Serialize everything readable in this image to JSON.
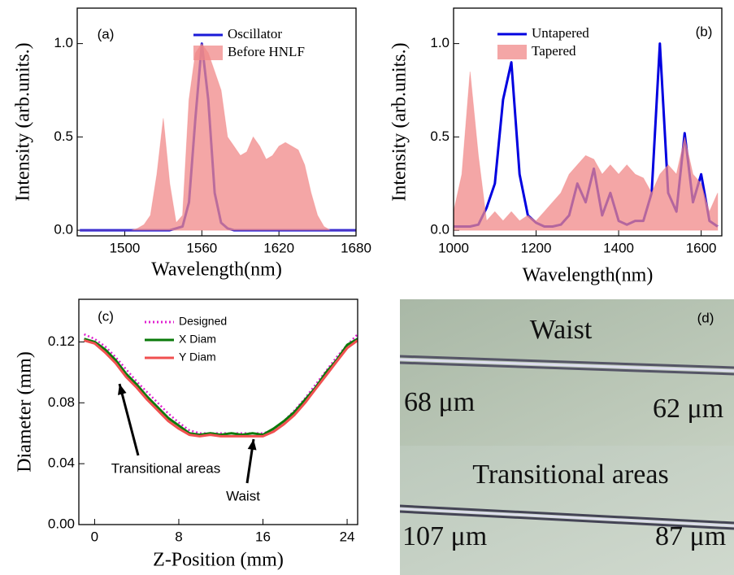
{
  "chart_data": [
    {
      "type": "line",
      "panel_label": "(a)",
      "xlabel": "Wavelength(nm)",
      "ylabel": "Intensity (arb.units.)",
      "xlim": [
        1463,
        1680
      ],
      "ylim": [
        -0.03,
        1.19
      ],
      "xticks": [
        1500,
        1560,
        1620,
        1680
      ],
      "yticks": [
        {
          "value": 0,
          "label": "0.0"
        },
        0.5,
        {
          "value": 1,
          "label": "1.0"
        }
      ],
      "x": [
        1465,
        1470,
        1475,
        1480,
        1485,
        1490,
        1495,
        1500,
        1505,
        1510,
        1515,
        1520,
        1525,
        1530,
        1535,
        1540,
        1545,
        1550,
        1555,
        1560,
        1565,
        1570,
        1575,
        1580,
        1585,
        1590,
        1595,
        1600,
        1605,
        1610,
        1615,
        1620,
        1625,
        1630,
        1635,
        1640,
        1645,
        1650,
        1655,
        1660,
        1665,
        1670,
        1675,
        1680
      ],
      "series": [
        {
          "name": "Oscillator",
          "color": "#1a1ad8",
          "style": "line",
          "values": [
            0,
            0,
            0,
            0,
            0,
            0,
            0,
            0,
            0,
            0,
            0,
            0,
            0,
            0,
            0,
            0.01,
            0.02,
            0.15,
            0.6,
            1.0,
            0.7,
            0.2,
            0.04,
            0.01,
            0,
            0,
            0,
            0,
            0,
            0,
            0,
            0,
            0,
            0,
            0,
            0,
            0,
            0,
            0,
            0,
            0,
            0,
            0,
            0
          ]
        },
        {
          "name": "Before HNLF",
          "color": "#f08888",
          "style": "area",
          "values": [
            0,
            0,
            0,
            0,
            0,
            0,
            0,
            0,
            0,
            0.01,
            0.03,
            0.08,
            0.3,
            0.6,
            0.25,
            0.04,
            0.08,
            0.7,
            0.95,
            1.0,
            0.95,
            0.85,
            0.75,
            0.5,
            0.45,
            0.4,
            0.42,
            0.5,
            0.45,
            0.38,
            0.4,
            0.45,
            0.47,
            0.45,
            0.43,
            0.35,
            0.2,
            0.08,
            0.02,
            0,
            0,
            0,
            0,
            0
          ]
        }
      ]
    },
    {
      "type": "line",
      "panel_label": "(b)",
      "xlabel": "Wavelength(nm)",
      "ylabel": "Intensity (arb.units.)",
      "xlim": [
        1000,
        1650
      ],
      "ylim": [
        -0.03,
        1.19
      ],
      "xticks": [
        1000,
        1200,
        1400,
        1600
      ],
      "yticks": [
        {
          "value": 0,
          "label": "0.0"
        },
        0.5,
        {
          "value": 1,
          "label": "1.0"
        }
      ],
      "x": [
        1000,
        1020,
        1040,
        1060,
        1080,
        1100,
        1120,
        1140,
        1160,
        1180,
        1200,
        1220,
        1240,
        1260,
        1280,
        1300,
        1320,
        1340,
        1360,
        1380,
        1400,
        1420,
        1440,
        1460,
        1480,
        1500,
        1520,
        1540,
        1560,
        1580,
        1600,
        1620,
        1640
      ],
      "series": [
        {
          "name": "Untapered",
          "color": "#0000e0",
          "style": "line",
          "values": [
            0.02,
            0.02,
            0.02,
            0.03,
            0.12,
            0.25,
            0.7,
            0.9,
            0.3,
            0.08,
            0.04,
            0.02,
            0.02,
            0.03,
            0.08,
            0.25,
            0.15,
            0.33,
            0.08,
            0.2,
            0.05,
            0.03,
            0.05,
            0.05,
            0.2,
            1.0,
            0.2,
            0.1,
            0.52,
            0.15,
            0.3,
            0.05,
            0.02
          ]
        },
        {
          "name": "Tapered",
          "color": "#f08888",
          "style": "area",
          "values": [
            0.1,
            0.3,
            0.85,
            0.4,
            0.05,
            0.1,
            0.05,
            0.1,
            0.05,
            0.08,
            0.05,
            0.1,
            0.15,
            0.2,
            0.3,
            0.35,
            0.4,
            0.38,
            0.3,
            0.35,
            0.3,
            0.35,
            0.3,
            0.28,
            0.2,
            0.3,
            0.35,
            0.3,
            0.5,
            0.3,
            0.25,
            0.1,
            0.2
          ]
        }
      ]
    },
    {
      "type": "line",
      "panel_label": "(c)",
      "xlabel": "Z-Position (mm)",
      "ylabel": "Diameter (mm)",
      "xlim": [
        -1.5,
        25
      ],
      "ylim": [
        0,
        0.148
      ],
      "xticks": [
        0,
        8,
        16,
        24
      ],
      "yticks": [
        {
          "value": 0,
          "label": "0.00"
        },
        {
          "value": 0.04,
          "label": "0.04"
        },
        {
          "value": 0.08,
          "label": "0.08"
        },
        {
          "value": 0.12,
          "label": "0.12"
        }
      ],
      "annotations": [
        "Transitional areas",
        "Waist"
      ],
      "x": [
        -1,
        0,
        1,
        2,
        3,
        4,
        5,
        6,
        7,
        8,
        9,
        10,
        11,
        12,
        13,
        14,
        15,
        16,
        17,
        18,
        19,
        20,
        21,
        22,
        23,
        24,
        25
      ],
      "series": [
        {
          "name": "Designed",
          "color": "#e020d0",
          "style": "dotted",
          "values": [
            0.125,
            0.122,
            0.117,
            0.11,
            0.102,
            0.094,
            0.087,
            0.08,
            0.073,
            0.067,
            0.062,
            0.06,
            0.06,
            0.06,
            0.06,
            0.06,
            0.06,
            0.06,
            0.062,
            0.068,
            0.075,
            0.083,
            0.092,
            0.101,
            0.11,
            0.118,
            0.125
          ]
        },
        {
          "name": "X Diam",
          "color": "#0a7a0a",
          "style": "line",
          "values": [
            0.122,
            0.12,
            0.115,
            0.108,
            0.099,
            0.092,
            0.084,
            0.077,
            0.07,
            0.065,
            0.06,
            0.059,
            0.06,
            0.059,
            0.06,
            0.059,
            0.06,
            0.059,
            0.063,
            0.068,
            0.074,
            0.082,
            0.09,
            0.1,
            0.108,
            0.118,
            0.122
          ]
        },
        {
          "name": "Y Diam",
          "color": "#f05050",
          "style": "line",
          "values": [
            0.121,
            0.119,
            0.113,
            0.106,
            0.097,
            0.09,
            0.082,
            0.075,
            0.068,
            0.063,
            0.059,
            0.058,
            0.059,
            0.058,
            0.058,
            0.058,
            0.058,
            0.058,
            0.061,
            0.066,
            0.072,
            0.08,
            0.089,
            0.098,
            0.107,
            0.116,
            0.121
          ]
        }
      ]
    }
  ],
  "micrograph": {
    "label": "(d)",
    "top_caption": "Waist",
    "top_left": "68 μm",
    "top_right": "62 μm",
    "bottom_caption": "Transitional areas",
    "bottom_left": "107 μm",
    "bottom_right": "87 μm"
  }
}
